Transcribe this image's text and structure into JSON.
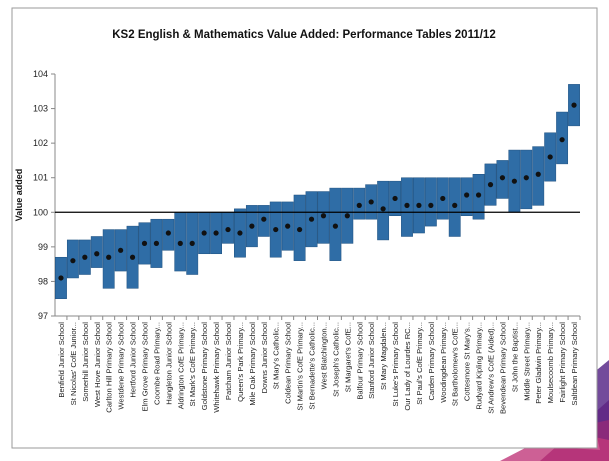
{
  "chart_data": {
    "type": "range-bar",
    "title": "KS2 English & Mathematics Value Added: Performance Tables 2011/12",
    "y_label": "Value added",
    "categories": [
      "Benfield Junior School",
      "St Nicolas' CofE Junior...",
      "Somerhill Junior School",
      "West Hove Junior School",
      "Carlton Hill Primary School",
      "Westdene Primary School",
      "Hertford Junior School",
      "Elm Grove Primary School",
      "Coombe Road Primary...",
      "Hangleton Junior School",
      "Aldrington CofE Primary...",
      "St Mark's CofE Primary...",
      "Goldstone Primary School",
      "Whitehawk Primary School",
      "Patcham Junior School",
      "Queen's Park Primary...",
      "Mile Oak Primary School",
      "Downs Junior School",
      "St Mary's Catholic...",
      "Coldean Primary School",
      "St Martin's CofE Primary...",
      "St Bernadette's Catholic...",
      "West Blatchington...",
      "St Joseph's Catholic...",
      "St Margaret's CofE...",
      "Balfour Primary School",
      "Stanford Junior School",
      "St Mary Magdalen...",
      "St Luke's Primary School",
      "Our Lady of Lourdes RC...",
      "St Paul's CofE Primary...",
      "Carden Primary School",
      "Woodingdean Primary...",
      "St Bartholomew's CofE...",
      "Cottesmore St Mary's...",
      "Rudyard Kipling Primary...",
      "St Andrew's CofE (Aided)...",
      "Bevendean Primary School",
      "St John the Baptist...",
      "Middle Street Primary...",
      "Peter Gladwin Primary...",
      "Moulsecoomb Primary...",
      "Fairlight Primary School",
      "Saltdean Primary School"
    ],
    "low": [
      97.5,
      98.1,
      98.2,
      98.4,
      97.8,
      98.3,
      97.8,
      98.5,
      98.4,
      98.9,
      98.3,
      98.2,
      98.8,
      98.8,
      99.1,
      98.7,
      99.0,
      99.3,
      98.7,
      98.9,
      98.6,
      99.0,
      99.1,
      98.6,
      99.1,
      99.8,
      99.8,
      99.2,
      99.9,
      99.3,
      99.4,
      99.6,
      99.8,
      99.3,
      99.9,
      99.8,
      100.2,
      100.4,
      100.0,
      100.1,
      100.2,
      100.9,
      101.4,
      102.5
    ],
    "high": [
      98.7,
      99.2,
      99.2,
      99.3,
      99.5,
      99.5,
      99.6,
      99.7,
      99.8,
      99.8,
      100.0,
      100.0,
      100.0,
      100.0,
      100.0,
      100.1,
      100.2,
      100.2,
      100.3,
      100.3,
      100.5,
      100.6,
      100.6,
      100.7,
      100.7,
      100.7,
      100.8,
      100.9,
      100.9,
      101.0,
      101.0,
      101.0,
      101.0,
      101.0,
      101.0,
      101.1,
      101.4,
      101.5,
      101.8,
      101.8,
      101.9,
      102.3,
      102.9,
      103.7
    ],
    "values": [
      98.1,
      98.6,
      98.7,
      98.8,
      98.7,
      98.9,
      98.7,
      99.1,
      99.1,
      99.4,
      99.1,
      99.1,
      99.4,
      99.4,
      99.5,
      99.4,
      99.6,
      99.8,
      99.5,
      99.6,
      99.5,
      99.8,
      99.9,
      99.6,
      99.9,
      100.2,
      100.3,
      100.1,
      100.4,
      100.2,
      100.2,
      100.2,
      100.4,
      100.2,
      100.5,
      100.5,
      100.8,
      101.0,
      100.9,
      101.0,
      101.1,
      101.6,
      102.1,
      103.1
    ],
    "reference_line": 100,
    "color": "#2f6da6",
    "point_color": "#111111",
    "ylim": [
      97,
      104
    ],
    "yticks": [
      97,
      98,
      99,
      100,
      101,
      102,
      103,
      104
    ],
    "grid": false
  }
}
